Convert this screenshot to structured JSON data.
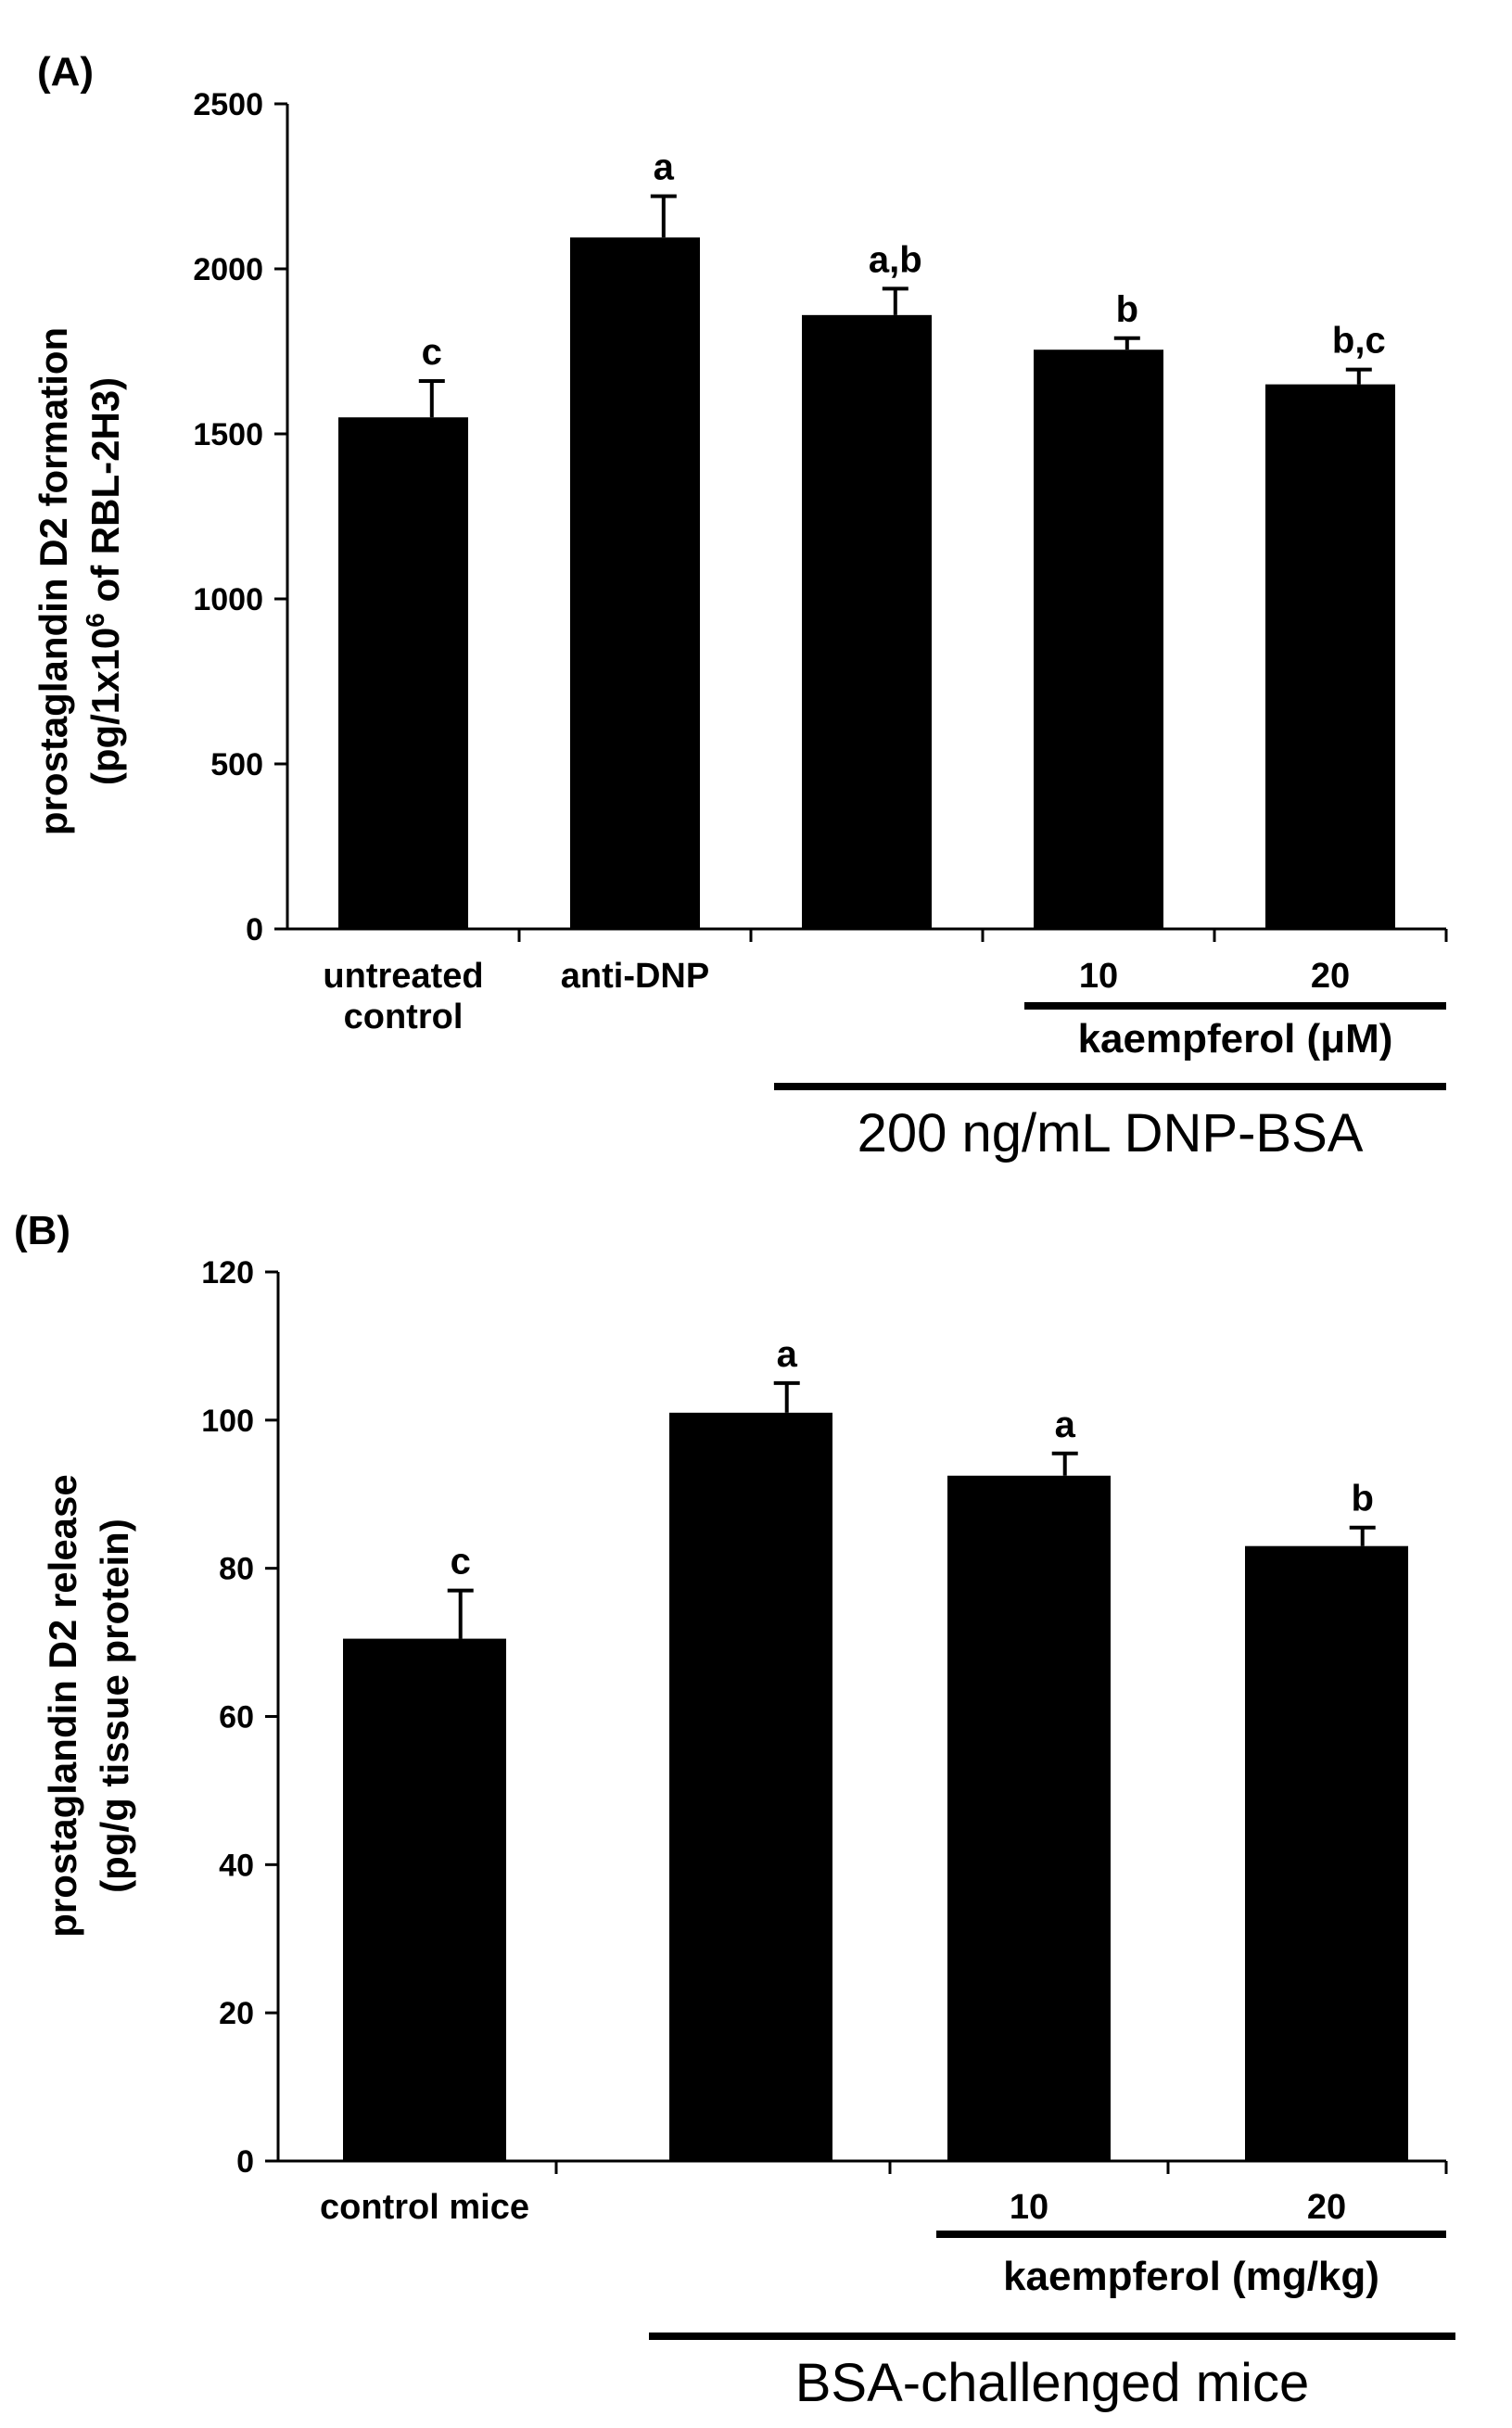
{
  "chart_data": [
    {
      "type": "bar",
      "panel_label": "(A)",
      "ylabel_lines": [
        "prostaglandin D2 formation",
        "(pg/1x10",
        "6",
        " of RBL-2H3)"
      ],
      "ylim": [
        0,
        2500
      ],
      "yticks": [
        0,
        500,
        1000,
        1500,
        2000,
        2500
      ],
      "grid": false,
      "bars": [
        {
          "label": [
            "untreated",
            "control"
          ],
          "value": 1550,
          "error": 110,
          "sig": "c"
        },
        {
          "label": [
            "anti-DNP"
          ],
          "value": 2095,
          "error": 125,
          "sig": "a"
        },
        {
          "label": [],
          "value": 1860,
          "error": 80,
          "sig": "a,b"
        },
        {
          "label": [
            "10"
          ],
          "value": 1755,
          "error": 35,
          "sig": "b"
        },
        {
          "label": [
            "20"
          ],
          "value": 1650,
          "error": 45,
          "sig": "b,c"
        }
      ],
      "groups": [
        {
          "text": "kaempferol  (μM)",
          "from_bar": 3,
          "to_bar": 4
        },
        {
          "text": "200 ng/mL DNP-BSA",
          "from_bar": 2,
          "to_bar": 4
        }
      ]
    },
    {
      "type": "bar",
      "panel_label": "(B)",
      "ylabel_lines": [
        "prostaglandin D2 release",
        "(pg/g tissue protein)"
      ],
      "ylim": [
        0,
        120
      ],
      "yticks": [
        0,
        20,
        40,
        60,
        80,
        100,
        120
      ],
      "grid": false,
      "bars": [
        {
          "label": [
            "control mice"
          ],
          "value": 70.5,
          "error": 6.5,
          "sig": "c"
        },
        {
          "label": [],
          "value": 101,
          "error": 4,
          "sig": "a"
        },
        {
          "label": [
            "10"
          ],
          "value": 92.5,
          "error": 3,
          "sig": "a"
        },
        {
          "label": [
            "20"
          ],
          "value": 83,
          "error": 2.5,
          "sig": "b"
        }
      ],
      "groups": [
        {
          "text": "kaempferol  (mg/kg)",
          "from_bar": 2,
          "to_bar": 3
        },
        {
          "text": "BSA-challenged mice",
          "from_bar": 1,
          "to_bar": 3
        }
      ]
    }
  ]
}
